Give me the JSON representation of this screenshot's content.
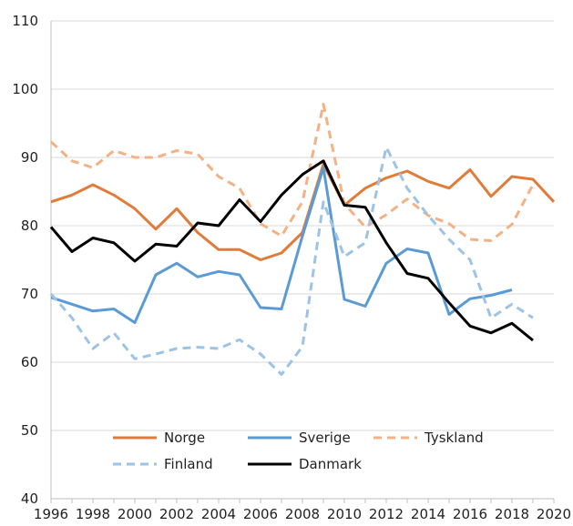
{
  "chart_data": {
    "type": "line",
    "title": "",
    "xlabel": "",
    "ylabel": "",
    "xlim": [
      1996,
      2020
    ],
    "ylim": [
      40,
      110
    ],
    "x_ticks": [
      "1996",
      "1998",
      "2000",
      "2002",
      "2004",
      "2006",
      "2008",
      "2010",
      "2012",
      "2014",
      "2016",
      "2018",
      "2020"
    ],
    "y_ticks": [
      "40",
      "50",
      "60",
      "70",
      "80",
      "90",
      "100",
      "110"
    ],
    "grid": "horizontal",
    "legend_position": "bottom-inside",
    "series": [
      {
        "name": "Norge",
        "color": "#E07B39",
        "style": "solid",
        "x": [
          1996,
          1997,
          1998,
          1999,
          2000,
          2001,
          2002,
          2003,
          2004,
          2005,
          2006,
          2007,
          2008,
          2009,
          2010,
          2011,
          2012,
          2013,
          2014,
          2015,
          2016,
          2017,
          2018,
          2019,
          2020
        ],
        "y": [
          83.5,
          84.5,
          86,
          84.5,
          82.5,
          79.5,
          82.5,
          79,
          76.5,
          76.5,
          75,
          76,
          79,
          89,
          83,
          85.5,
          87,
          88,
          86.5,
          85.5,
          88.2,
          84.3,
          87.2,
          86.8,
          83.5
        ]
      },
      {
        "name": "Sverige",
        "color": "#5B9BD5",
        "style": "solid",
        "x": [
          1996,
          1997,
          1998,
          1999,
          2000,
          2001,
          2002,
          2003,
          2004,
          2005,
          2006,
          2007,
          2008,
          2009,
          2010,
          2011,
          2012,
          2013,
          2014,
          2015,
          2016,
          2017,
          2018
        ],
        "y": [
          69.5,
          68.5,
          67.5,
          67.8,
          65.8,
          72.8,
          74.5,
          72.5,
          73.3,
          72.8,
          68,
          67.8,
          78.5,
          88.5,
          69.2,
          68.2,
          74.5,
          76.6,
          76,
          67,
          69.3,
          69.8,
          70.6
        ]
      },
      {
        "name": "Tyskland",
        "color": "#F4B183",
        "style": "dashed",
        "x": [
          1996,
          1997,
          1998,
          1999,
          2000,
          2001,
          2002,
          2003,
          2004,
          2005,
          2006,
          2007,
          2008,
          2009,
          2010,
          2011,
          2012,
          2013,
          2014,
          2015,
          2016,
          2017,
          2018,
          2019
        ],
        "y": [
          92.3,
          89.5,
          88.5,
          91,
          90,
          90,
          91,
          90.5,
          87.2,
          85.5,
          80.3,
          78.5,
          83.5,
          97.8,
          83.2,
          79.8,
          81.6,
          83.9,
          81.5,
          80.3,
          78,
          77.8,
          80.2,
          86
        ]
      },
      {
        "name": "Finland",
        "color": "#9DC3E6",
        "style": "dashed",
        "x": [
          1996,
          1997,
          1998,
          1999,
          2000,
          2001,
          2002,
          2003,
          2004,
          2005,
          2006,
          2007,
          2008,
          2009,
          2010,
          2011,
          2012,
          2013,
          2014,
          2015,
          2016,
          2017,
          2018,
          2019
        ],
        "y": [
          70,
          66.5,
          62,
          64.3,
          60.5,
          61.2,
          62,
          62.2,
          62,
          63.3,
          61.2,
          58.2,
          62.3,
          83.5,
          75.5,
          77.5,
          91.5,
          85.5,
          81.5,
          78,
          75,
          66.5,
          68.5,
          66.5
        ]
      },
      {
        "name": "Danmark",
        "color": "#000000",
        "style": "solid",
        "x": [
          1996,
          1997,
          1998,
          1999,
          2000,
          2001,
          2002,
          2003,
          2004,
          2005,
          2006,
          2007,
          2008,
          2009,
          2010,
          2011,
          2012,
          2013,
          2014,
          2015,
          2016,
          2017,
          2018,
          2019
        ],
        "y": [
          79.8,
          76.2,
          78.2,
          77.5,
          74.8,
          77.3,
          77,
          80.4,
          80,
          83.8,
          80.6,
          84.5,
          87.5,
          89.5,
          83,
          82.7,
          77.5,
          73,
          72.3,
          68.7,
          65.3,
          64.3,
          65.7,
          63.2
        ]
      }
    ]
  }
}
